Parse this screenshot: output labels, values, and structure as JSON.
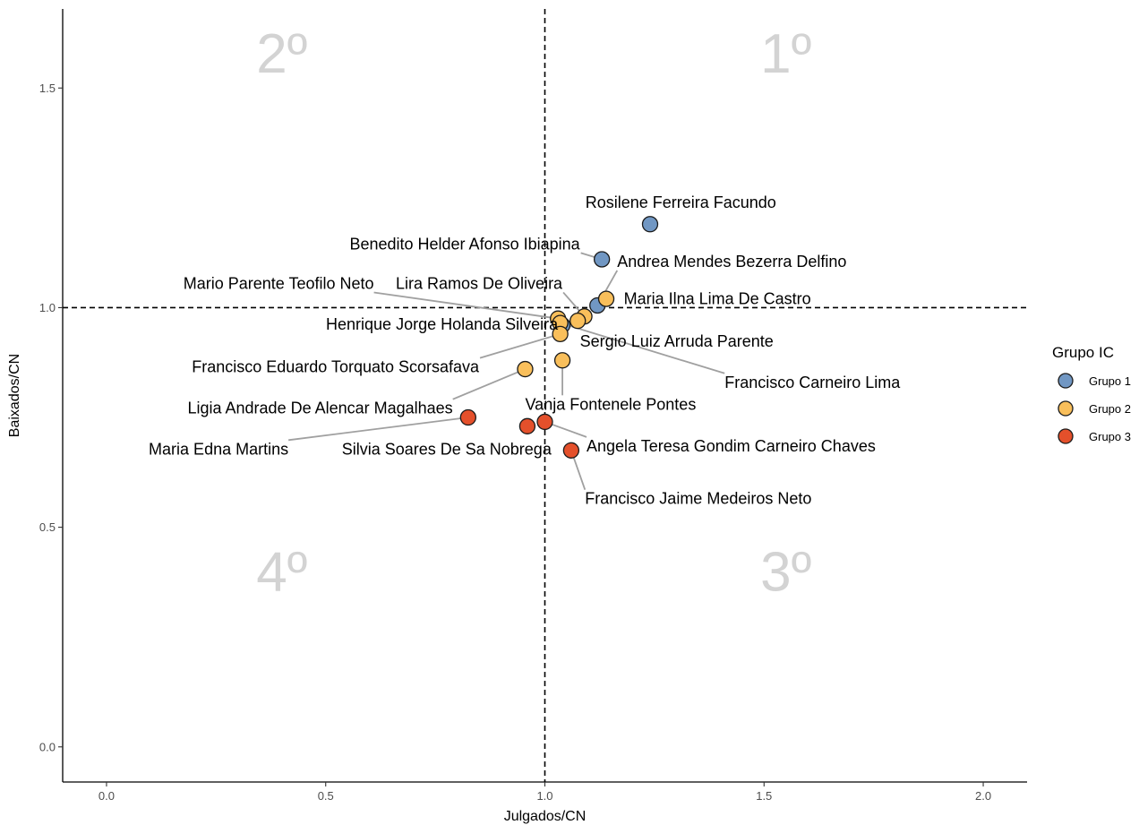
{
  "chart_data": {
    "type": "scatter",
    "xlabel": "Julgados/CN",
    "ylabel": "Baixados/CN",
    "xlim": [
      -0.1,
      2.1
    ],
    "ylim": [
      -0.08,
      1.68
    ],
    "x_ticks": [
      0.0,
      0.5,
      1.0,
      1.5,
      2.0
    ],
    "x_tick_labels": [
      "0.0",
      "0.5",
      "1.0",
      "1.5",
      "2.0"
    ],
    "y_ticks": [
      0.0,
      0.5,
      1.0,
      1.5
    ],
    "y_tick_labels": [
      "0.0",
      "0.5",
      "1.0",
      "1.5"
    ],
    "reference_lines": {
      "x": 1.0,
      "y": 1.0,
      "style": "dashed"
    },
    "quadrant_labels": [
      {
        "text": "1º",
        "x": 1.55,
        "y": 1.58
      },
      {
        "text": "2º",
        "x": 0.4,
        "y": 1.58
      },
      {
        "text": "3º",
        "x": 1.55,
        "y": 0.4
      },
      {
        "text": "4º",
        "x": 0.4,
        "y": 0.4
      }
    ],
    "grid": false,
    "legend": {
      "title": "Grupo IC",
      "position": "right",
      "entries": [
        {
          "name": "Grupo 1",
          "color": "#7197c3"
        },
        {
          "name": "Grupo 2",
          "color": "#f9bf5b"
        },
        {
          "name": "Grupo 3",
          "color": "#e4502b"
        }
      ]
    },
    "points": [
      {
        "label": "Rosilene Ferreira Facundo",
        "group": "Grupo 1",
        "x": 1.24,
        "y": 1.19,
        "label_x": 1.31,
        "label_y": 1.24,
        "anchor": "middle",
        "leader": false
      },
      {
        "label": "Benedito Helder Afonso Ibiapina",
        "group": "Grupo 1",
        "x": 1.13,
        "y": 1.11,
        "label_x": 1.08,
        "label_y": 1.145,
        "anchor": "end",
        "leader": true
      },
      {
        "label": "Andrea Mendes Bezerra Delfino",
        "group": "Grupo 1",
        "x": 1.12,
        "y": 1.005,
        "label_x": 1.165,
        "label_y": 1.105,
        "anchor": "start",
        "leader": true
      },
      {
        "label": "Maria Ilna Lima De Castro",
        "group": "Grupo 2",
        "x": 1.14,
        "y": 1.02,
        "label_x": 1.18,
        "label_y": 1.02,
        "anchor": "start",
        "leader": false
      },
      {
        "label": "Lira Ramos De Oliveira",
        "group": "Grupo 2",
        "x": 1.09,
        "y": 0.98,
        "label_x": 1.04,
        "label_y": 1.055,
        "anchor": "end",
        "leader": true
      },
      {
        "label": "Mario Parente Teofilo Neto",
        "group": "Grupo 2",
        "x": 1.03,
        "y": 0.975,
        "label_x": 0.61,
        "label_y": 1.055,
        "anchor": "end",
        "leader": true
      },
      {
        "label": "Henrique Jorge Holanda Silveira",
        "group": "Grupo 1",
        "x": 1.04,
        "y": 0.96,
        "label_x": 1.03,
        "label_y": 0.962,
        "anchor": "end",
        "leader": false
      },
      {
        "label": "Sergio Luiz Arruda Parente",
        "group": "Grupo 2",
        "x": 1.075,
        "y": 0.97,
        "label_x": 1.08,
        "label_y": 0.923,
        "anchor": "start",
        "leader": false
      },
      {
        "label": "Francisco Carneiro Lima",
        "group": "Grupo 2",
        "x": 1.035,
        "y": 0.965,
        "label_x": 1.41,
        "label_y": 0.83,
        "anchor": "start",
        "leader": true
      },
      {
        "label": "Francisco Eduardo Torquato Scorsafava",
        "group": "Grupo 2",
        "x": 1.035,
        "y": 0.94,
        "label_x": 0.85,
        "label_y": 0.865,
        "anchor": "end",
        "leader": true
      },
      {
        "label": "Vanja Fontenele Pontes",
        "group": "Grupo 2",
        "x": 1.04,
        "y": 0.88,
        "label_x": 1.15,
        "label_y": 0.78,
        "anchor": "middle",
        "leader": true
      },
      {
        "label": "Ligia Andrade De Alencar Magalhaes",
        "group": "Grupo 2",
        "x": 0.955,
        "y": 0.86,
        "label_x": 0.79,
        "label_y": 0.771,
        "anchor": "end",
        "leader": true
      },
      {
        "label": "Maria Edna Martins",
        "group": "Grupo 3",
        "x": 0.825,
        "y": 0.75,
        "label_x": 0.415,
        "label_y": 0.678,
        "anchor": "end",
        "leader": true
      },
      {
        "label": "Silvia Soares De Sa Nobrega",
        "group": "Grupo 3",
        "x": 0.96,
        "y": 0.73,
        "label_x": 1.015,
        "label_y": 0.678,
        "anchor": "end",
        "leader": false
      },
      {
        "label": "Angela Teresa Gondim Carneiro Chaves",
        "group": "Grupo 3",
        "x": 1.0,
        "y": 0.74,
        "label_x": 1.095,
        "label_y": 0.685,
        "anchor": "start",
        "leader": true
      },
      {
        "label": "Francisco Jaime Medeiros Neto",
        "group": "Grupo 3",
        "x": 1.06,
        "y": 0.675,
        "label_x": 1.35,
        "label_y": 0.565,
        "anchor": "middle",
        "leader": true
      }
    ]
  }
}
